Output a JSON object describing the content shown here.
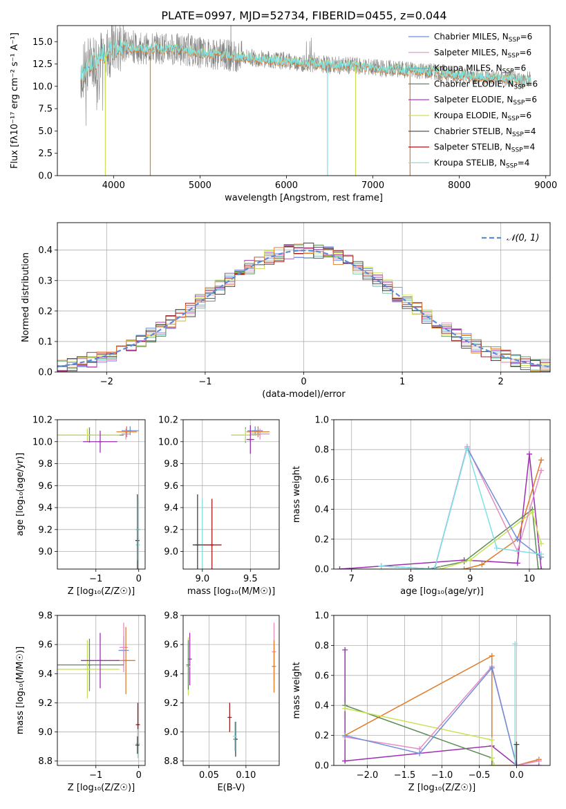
{
  "figure_title": "PLATE=0997, MJD=52734, FIBERID=0455, z=0.044",
  "colors": {
    "chabrier_miles": "#6d8fdc",
    "salpeter_miles": "#e58cc0",
    "kroupa_miles": "#65b6b0",
    "chabrier_elodie": "#5b8b55",
    "salpeter_elodie": "#9b2fb0",
    "kroupa_elodie": "#c9e255",
    "chabrier_stelib": "#404040",
    "salpeter_stelib": "#a01b1b",
    "kroupa_stelib": "#7ee0e6",
    "data": "#808080",
    "orange": "#e07b28",
    "gaussian": "#5b8bd8",
    "grid": "#b0b0b0"
  },
  "chart_data": [
    {
      "type": "line",
      "name": "spectrum",
      "title": "PLATE=0997, MJD=52734, FIBERID=0455, z=0.044",
      "xlabel": "wavelength [Angstrom, rest frame]",
      "ylabel": "Flux [fλ10⁻¹⁷ erg cm⁻² s⁻¹ A⁻¹]",
      "xlim": [
        3350,
        9050
      ],
      "ylim": [
        0,
        16.8
      ],
      "xticks": [
        "4000",
        "5000",
        "6000",
        "7000",
        "8000",
        "9000"
      ],
      "yticks": [
        "0.0",
        "2.5",
        "5.0",
        "7.5",
        "10.0",
        "12.5",
        "15.0"
      ],
      "grid": false,
      "legend_position": "top-right",
      "legend": [
        {
          "label": "Chabrier MILES, N",
          "sub": "SSP",
          "suffix": "=6",
          "color_key": "chabrier_miles"
        },
        {
          "label": "Salpeter MILES, N",
          "sub": "SSP",
          "suffix": "=6",
          "color_key": "salpeter_miles"
        },
        {
          "label": "Kroupa MILES, N",
          "sub": "SSP",
          "suffix": "=6",
          "color_key": "kroupa_miles"
        },
        {
          "label": "Chabrier ELODIE, N",
          "sub": "SSP",
          "suffix": "=6",
          "color_key": "chabrier_elodie"
        },
        {
          "label": "Salpeter ELODIE, N",
          "sub": "SSP",
          "suffix": "=6",
          "color_key": "salpeter_elodie"
        },
        {
          "label": "Kroupa ELODIE, N",
          "sub": "SSP",
          "suffix": "=6",
          "color_key": "kroupa_elodie"
        },
        {
          "label": "Chabrier STELIB, N",
          "sub": "SSP",
          "suffix": "=4",
          "color_key": "chabrier_stelib"
        },
        {
          "label": "Salpeter STELIB, N",
          "sub": "SSP",
          "suffix": "=4",
          "color_key": "salpeter_stelib"
        },
        {
          "label": "Kroupa STELIB, N",
          "sub": "SSP",
          "suffix": "=4",
          "color_key": "kroupa_stelib"
        }
      ],
      "continuum": [
        [
          3620,
          11.2
        ],
        [
          3700,
          12.4
        ],
        [
          3800,
          13.2
        ],
        [
          3900,
          13.6
        ],
        [
          4000,
          14.3
        ],
        [
          4100,
          14.6
        ],
        [
          4300,
          14.2
        ],
        [
          4500,
          14.3
        ],
        [
          4800,
          14.1
        ],
        [
          5000,
          13.8
        ],
        [
          5200,
          13.6
        ],
        [
          5500,
          13.3
        ],
        [
          5800,
          13.0
        ],
        [
          6000,
          12.8
        ],
        [
          6200,
          12.6
        ],
        [
          6500,
          12.4
        ],
        [
          6800,
          12.3
        ],
        [
          7000,
          12.1
        ],
        [
          7300,
          11.9
        ],
        [
          7500,
          11.8
        ],
        [
          7800,
          11.5
        ],
        [
          8000,
          11.3
        ],
        [
          8300,
          11.0
        ],
        [
          8600,
          10.8
        ],
        [
          8830,
          10.7
        ]
      ],
      "spikes_down": [
        {
          "x": 3905,
          "y": 0,
          "color_key": "kroupa_elodie"
        },
        {
          "x": 4425,
          "y": 0,
          "color_key": "orange"
        },
        {
          "x": 6475,
          "y": 0,
          "color_key": "kroupa_stelib"
        },
        {
          "x": 6800,
          "y": 0,
          "color_key": "kroupa_elodie"
        },
        {
          "x": 7430,
          "y": 0,
          "color_key": "orange"
        }
      ]
    },
    {
      "type": "histogram",
      "name": "residuals",
      "xlabel": "(data-model)/error",
      "ylabel": "Normed distribution",
      "xlim": [
        -2.5,
        2.5
      ],
      "ylim": [
        0,
        0.49
      ],
      "xticks": [
        -2,
        -1,
        0,
        1,
        2
      ],
      "yticks": [
        "0.0",
        "0.1",
        "0.2",
        "0.3",
        "0.4"
      ],
      "grid": true,
      "legend_position": "top-right",
      "gaussian_label": "𝒩(0, 1)"
    },
    {
      "type": "scatter",
      "name": "age-vs-Z",
      "xlabel": "Z [log₁₀(Z/Z☉)]",
      "ylabel": "age  [log₁₀(age/yr)]",
      "xlim": [
        -1.9,
        0.15
      ],
      "ylim": [
        8.84,
        10.2
      ],
      "xticks": [
        -1,
        0
      ],
      "yticks": [
        "9.0",
        "9.2",
        "9.4",
        "9.6",
        "9.8",
        "10.0",
        "10.2"
      ],
      "points": [
        {
          "x": -0.2,
          "y": 10.1,
          "xerr": 0.2,
          "yerr": 0.04,
          "color_key": "chabrier_miles"
        },
        {
          "x": -0.3,
          "y": 10.07,
          "xerr": 0.1,
          "yerr": 0.05,
          "color_key": "salpeter_miles"
        },
        {
          "x": -0.28,
          "y": 10.09,
          "xerr": 0.24,
          "yerr": 0.05,
          "color_key": "orange"
        },
        {
          "x": -1.15,
          "y": 10.06,
          "xerr": 0.8,
          "yerr": 0.07,
          "color_key": "chabrier_elodie"
        },
        {
          "x": -1.2,
          "y": 10.06,
          "xerr": 0.75,
          "yerr": 0.06,
          "color_key": "kroupa_elodie"
        },
        {
          "x": -0.9,
          "y": 10.0,
          "xerr": 0.4,
          "yerr": 0.1,
          "color_key": "salpeter_elodie"
        },
        {
          "x": -0.02,
          "y": 9.06,
          "xerr": 0.04,
          "yerr": 0.4,
          "color_key": "kroupa_stelib"
        },
        {
          "x": -0.03,
          "y": 9.1,
          "xerr": 0.02,
          "yerr": 0.42,
          "color_key": "chabrier_stelib"
        },
        {
          "x": -0.02,
          "y": 9.2,
          "xerr": 0.02,
          "yerr": 0.28,
          "color_key": "kroupa_miles"
        }
      ]
    },
    {
      "type": "scatter",
      "name": "age-vs-mass",
      "xlabel": "mass [log₁₀(M/M☉)]",
      "ylabel": "",
      "xlim": [
        8.8,
        9.8
      ],
      "ylim": [
        8.84,
        10.2
      ],
      "xticks": [
        "9.0",
        "9.5"
      ],
      "yticks": [
        "9.0",
        "9.2",
        "9.4",
        "9.6",
        "9.8",
        "10.0",
        "10.2"
      ],
      "points": [
        {
          "x": 9.55,
          "y": 10.1,
          "xerr": 0.08,
          "yerr": 0.04,
          "color_key": "chabrier_miles"
        },
        {
          "x": 9.6,
          "y": 10.07,
          "xerr": 0.1,
          "yerr": 0.05,
          "color_key": "salpeter_miles"
        },
        {
          "x": 9.58,
          "y": 10.09,
          "xerr": 0.12,
          "yerr": 0.05,
          "color_key": "orange"
        },
        {
          "x": 9.45,
          "y": 10.06,
          "xerr": 0.15,
          "yerr": 0.07,
          "color_key": "chabrier_elodie"
        },
        {
          "x": 9.45,
          "y": 10.06,
          "xerr": 0.15,
          "yerr": 0.06,
          "color_key": "kroupa_elodie"
        },
        {
          "x": 9.5,
          "y": 10.02,
          "xerr": 0.04,
          "yerr": 0.13,
          "color_key": "salpeter_elodie"
        },
        {
          "x": 9.0,
          "y": 9.06,
          "xerr": 0.1,
          "yerr": 0.42,
          "color_key": "kroupa_stelib"
        },
        {
          "x": 9.1,
          "y": 9.06,
          "xerr": 0.1,
          "yerr": 0.42,
          "color_key": "salpeter_stelib"
        },
        {
          "x": 8.95,
          "y": 9.06,
          "xerr": 0.05,
          "yerr": 0.46,
          "color_key": "chabrier_stelib"
        }
      ]
    },
    {
      "type": "line",
      "name": "mass-weight-vs-age",
      "xlabel": "age  [log₁₀(age/yr)]",
      "ylabel": "mass weight",
      "xlim": [
        6.7,
        10.35
      ],
      "ylim": [
        0,
        1.0
      ],
      "xticks": [
        7,
        8,
        9,
        10
      ],
      "yticks": [
        "0.0",
        "0.2",
        "0.4",
        "0.6",
        "0.8",
        "1.0"
      ],
      "series": [
        {
          "color_key": "salpeter_elodie",
          "x": [
            6.8,
            8.9,
            9.8,
            10.0,
            10.2
          ],
          "y": [
            0.0,
            0.06,
            0.04,
            0.77,
            0.0
          ]
        },
        {
          "color_key": "orange",
          "x": [
            8.9,
            9.2,
            9.8,
            10.2
          ],
          "y": [
            0.0,
            0.03,
            0.2,
            0.73
          ]
        },
        {
          "color_key": "chabrier_elodie",
          "x": [
            8.3,
            8.9,
            10.05,
            10.15
          ],
          "y": [
            0.0,
            0.05,
            0.4,
            0.0
          ]
        },
        {
          "color_key": "kroupa_elodie",
          "x": [
            8.5,
            9.0,
            10.05,
            10.2
          ],
          "y": [
            0.0,
            0.06,
            0.38,
            0.17
          ]
        },
        {
          "color_key": "salpeter_miles",
          "x": [
            7.5,
            8.4,
            8.95,
            9.8,
            10.2
          ],
          "y": [
            0.02,
            0.0,
            0.82,
            0.12,
            0.66
          ]
        },
        {
          "color_key": "chabrier_miles",
          "x": [
            7.5,
            8.4,
            8.95,
            9.8,
            10.2
          ],
          "y": [
            0.02,
            0.0,
            0.81,
            0.2,
            0.08
          ]
        },
        {
          "color_key": "kroupa_stelib",
          "x": [
            7.5,
            8.4,
            8.95,
            9.45,
            10.2
          ],
          "y": [
            0.02,
            0.0,
            0.81,
            0.14,
            0.1
          ]
        }
      ]
    },
    {
      "type": "scatter",
      "name": "mass-vs-Z",
      "xlabel": "Z [log₁₀(Z/Z☉)]",
      "ylabel": "mass [log₁₀(M/M☉)]",
      "xlim": [
        -1.9,
        0.15
      ],
      "ylim": [
        8.77,
        9.8
      ],
      "xticks": [
        -1,
        0
      ],
      "yticks": [
        "8.8",
        "9.0",
        "9.2",
        "9.4",
        "9.6",
        "9.8"
      ],
      "points": [
        {
          "x": -0.35,
          "y": 9.56,
          "xerr": 0.12,
          "yerr": 0.1,
          "color_key": "chabrier_miles"
        },
        {
          "x": -0.35,
          "y": 9.58,
          "xerr": 0.1,
          "yerr": 0.17,
          "color_key": "salpeter_miles"
        },
        {
          "x": -0.3,
          "y": 9.49,
          "xerr": 0.22,
          "yerr": 0.23,
          "color_key": "orange"
        },
        {
          "x": -1.15,
          "y": 9.46,
          "xerr": 0.8,
          "yerr": 0.18,
          "color_key": "chabrier_elodie"
        },
        {
          "x": -1.2,
          "y": 9.43,
          "xerr": 0.75,
          "yerr": 0.2,
          "color_key": "kroupa_elodie"
        },
        {
          "x": -0.9,
          "y": 9.49,
          "xerr": 0.45,
          "yerr": 0.19,
          "color_key": "salpeter_elodie"
        },
        {
          "x": -0.02,
          "y": 9.05,
          "xerr": 0.02,
          "yerr": 0.15,
          "color_key": "salpeter_stelib"
        },
        {
          "x": -0.02,
          "y": 8.92,
          "xerr": 0.03,
          "yerr": 0.1,
          "color_key": "kroupa_stelib"
        },
        {
          "x": -0.03,
          "y": 8.91,
          "xerr": 0.02,
          "yerr": 0.06,
          "color_key": "chabrier_stelib"
        }
      ]
    },
    {
      "type": "scatter",
      "name": "mass-vs-ebv",
      "xlabel": "E(B-V)",
      "ylabel": "",
      "xlim": [
        0.015,
        0.145
      ],
      "ylim": [
        8.77,
        9.8
      ],
      "xticks": [
        "0.05",
        "0.10"
      ],
      "yticks": [
        "8.8",
        "9.0",
        "9.2",
        "9.4",
        "9.6",
        "9.8"
      ],
      "points": [
        {
          "x": 0.024,
          "y": 9.5,
          "xerr": 0,
          "yerr": 0.18,
          "color_key": "salpeter_elodie"
        },
        {
          "x": 0.022,
          "y": 9.45,
          "xerr": 0,
          "yerr": 0.2,
          "color_key": "kroupa_elodie"
        },
        {
          "x": 0.022,
          "y": 9.46,
          "xerr": 0,
          "yerr": 0.17,
          "color_key": "chabrier_elodie"
        },
        {
          "x": 0.138,
          "y": 9.55,
          "xerr": 0,
          "yerr": 0.2,
          "color_key": "salpeter_miles"
        },
        {
          "x": 0.138,
          "y": 9.45,
          "xerr": 0,
          "yerr": 0.18,
          "color_key": "orange"
        },
        {
          "x": 0.078,
          "y": 9.1,
          "xerr": 0,
          "yerr": 0.1,
          "color_key": "salpeter_stelib"
        },
        {
          "x": 0.086,
          "y": 8.95,
          "xerr": 0,
          "yerr": 0.12,
          "color_key": "chabrier_stelib"
        },
        {
          "x": 0.085,
          "y": 8.97,
          "xerr": 0,
          "yerr": 0.1,
          "color_key": "kroupa_stelib"
        }
      ]
    },
    {
      "type": "line",
      "name": "mass-weight-vs-Z",
      "xlabel": "Z [log₁₀(Z/Z☉)]",
      "ylabel": "mass weight",
      "xlim": [
        -2.45,
        0.45
      ],
      "ylim": [
        0,
        1.0
      ],
      "xticks": [
        "−2.0",
        "−1.5",
        "−1.0",
        "−0.5",
        "0.0"
      ],
      "yticks": [
        "0.0",
        "0.2",
        "0.4",
        "0.6",
        "0.8",
        "1.0"
      ],
      "series": [
        {
          "color_key": "salpeter_elodie",
          "x": [
            -2.3,
            -2.3,
            -2.3,
            -0.33,
            0.0,
            0.3
          ],
          "y": [
            0.77,
            0.03,
            0.03,
            0.13,
            0.0,
            0.0
          ]
        },
        {
          "color_key": "orange",
          "x": [
            -2.3,
            -0.33,
            -0.33,
            0.0,
            0.3
          ],
          "y": [
            0.2,
            0.73,
            0.0,
            0.0,
            0.04
          ]
        },
        {
          "color_key": "chabrier_elodie",
          "x": [
            -2.3,
            -0.33,
            -0.33
          ],
          "y": [
            0.4,
            0.05,
            0.0
          ]
        },
        {
          "color_key": "kroupa_elodie",
          "x": [
            -2.3,
            -0.33,
            -0.33,
            -0.3
          ],
          "y": [
            0.38,
            0.17,
            0.05,
            0.0
          ]
        },
        {
          "color_key": "salpeter_miles",
          "x": [
            -2.3,
            -1.3,
            -0.33,
            0.0,
            0.3
          ],
          "y": [
            0.19,
            0.11,
            0.66,
            0.0,
            0.03
          ]
        },
        {
          "color_key": "chabrier_miles",
          "x": [
            -2.3,
            -1.3,
            -0.33,
            0.0
          ],
          "y": [
            0.2,
            0.08,
            0.65,
            0.0
          ]
        },
        {
          "color_key": "kroupa_stelib",
          "x": [
            -0.02,
            -0.02
          ],
          "y": [
            0.81,
            0.0
          ]
        },
        {
          "color_key": "chabrier_stelib",
          "x": [
            0.0,
            0.0
          ],
          "y": [
            0.14,
            0.0
          ]
        }
      ]
    }
  ]
}
